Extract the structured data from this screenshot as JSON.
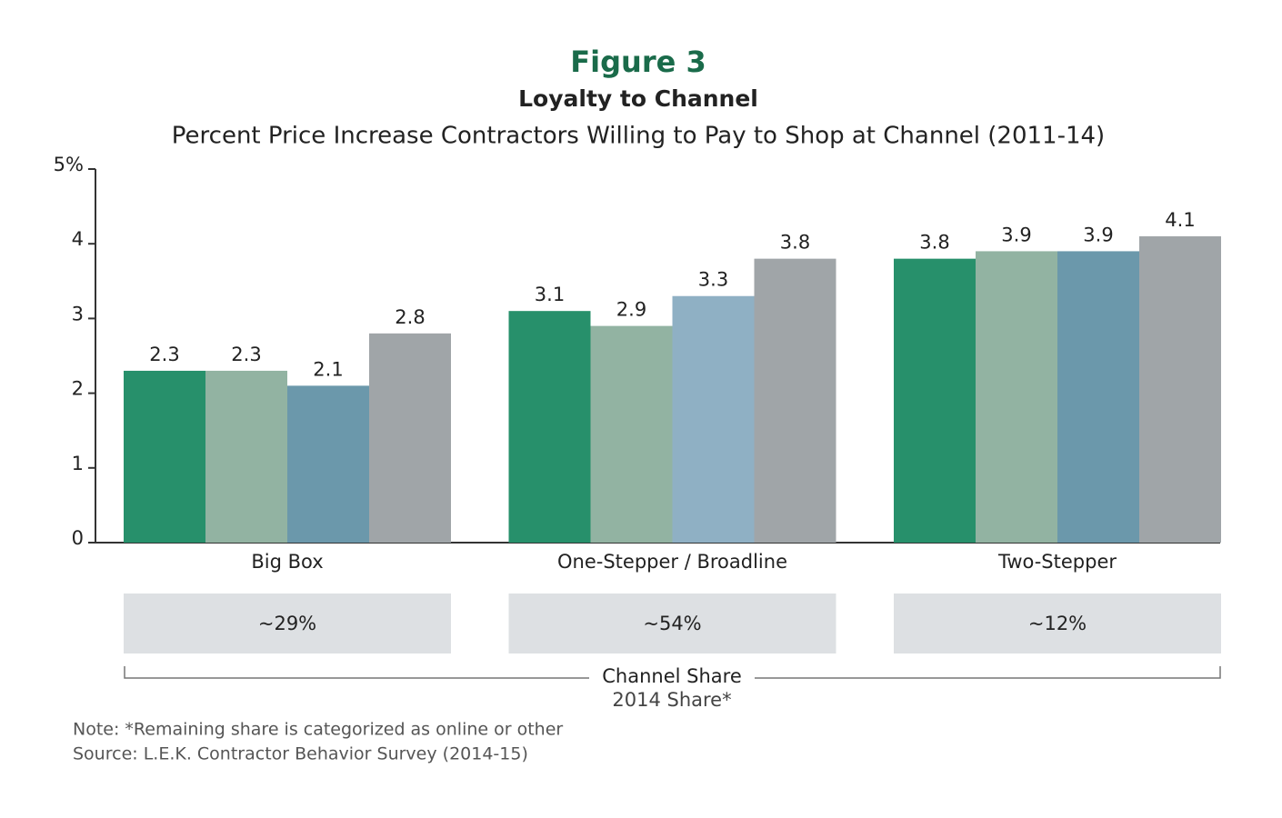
{
  "chart_data": {
    "type": "bar",
    "figure_label": "Figure 3",
    "title": "Loyalty to Channel",
    "subtitle": "Percent Price Increase Contractors Willing to Pay to Shop at Channel (2011-14)",
    "categories": [
      "Big Box",
      "One-Stepper / Broadline",
      "Two-Stepper"
    ],
    "series": [
      {
        "color": "#27906b",
        "values": [
          2.3,
          3.1,
          3.8
        ]
      },
      {
        "color": "#92b3a2",
        "values": [
          2.3,
          2.9,
          3.9
        ]
      },
      {
        "color": "#6b98ab",
        "colors": [
          "#6b98ab",
          "#8fb0c4",
          "#6b98ab"
        ],
        "values": [
          2.1,
          3.3,
          3.9
        ]
      },
      {
        "color": "#a0a5a8",
        "values": [
          2.8,
          3.8,
          4.1
        ]
      }
    ],
    "ylim": [
      0,
      5
    ],
    "yticks": [
      0,
      1,
      2,
      3,
      4,
      {
        "value": 5,
        "label": "5%"
      }
    ],
    "grid": false,
    "channel_share": {
      "title": "Channel Share",
      "subtitle": "2014 Share*",
      "labels": [
        "~29%",
        "~54%",
        "~12%"
      ]
    },
    "notes": [
      "Note: *Remaining share is categorized as online or other",
      "Source: L.E.K. Contractor Behavior Survey (2014-15)"
    ]
  }
}
